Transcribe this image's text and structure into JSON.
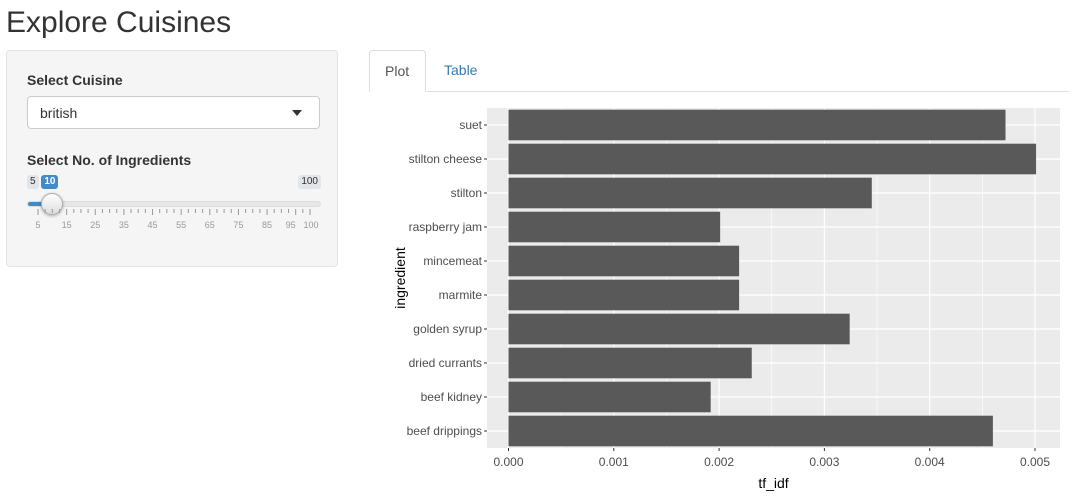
{
  "app": {
    "title": "Explore Cuisines"
  },
  "sidebar": {
    "cuisine_label": "Select Cuisine",
    "cuisine_value": "british",
    "ingredients_label": "Select No. of Ingredients",
    "slider": {
      "min": 5,
      "max": 100,
      "value": 10,
      "min_label": "5",
      "max_label": "100",
      "value_label": "10",
      "tick_labels": [
        "5",
        "15",
        "25",
        "35",
        "45",
        "55",
        "65",
        "75",
        "85",
        "95",
        "100"
      ],
      "accent_color": "#428bca"
    }
  },
  "tabs": [
    {
      "label": "Plot",
      "active": true
    },
    {
      "label": "Table",
      "active": false
    }
  ],
  "chart_data": {
    "type": "bar",
    "orientation": "horizontal",
    "categories": [
      "suet",
      "stilton cheese",
      "stilton",
      "raspberry jam",
      "mincemeat",
      "marmite",
      "golden syrup",
      "dried currants",
      "beef kidney",
      "beef drippings"
    ],
    "values": [
      0.00472,
      0.00501,
      0.00345,
      0.00201,
      0.00219,
      0.00219,
      0.00324,
      0.00231,
      0.00192,
      0.0046
    ],
    "xlabel": "tf_idf",
    "ylabel": "ingredient",
    "xlim": [
      0,
      0.005
    ],
    "xticks": [
      "0.000",
      "0.001",
      "0.002",
      "0.003",
      "0.004",
      "0.005"
    ],
    "tick_values": [
      0,
      0.001,
      0.002,
      0.003,
      0.004,
      0.005
    ],
    "grid": true,
    "bar_color": "#595959",
    "panel_color": "#ebebeb"
  }
}
